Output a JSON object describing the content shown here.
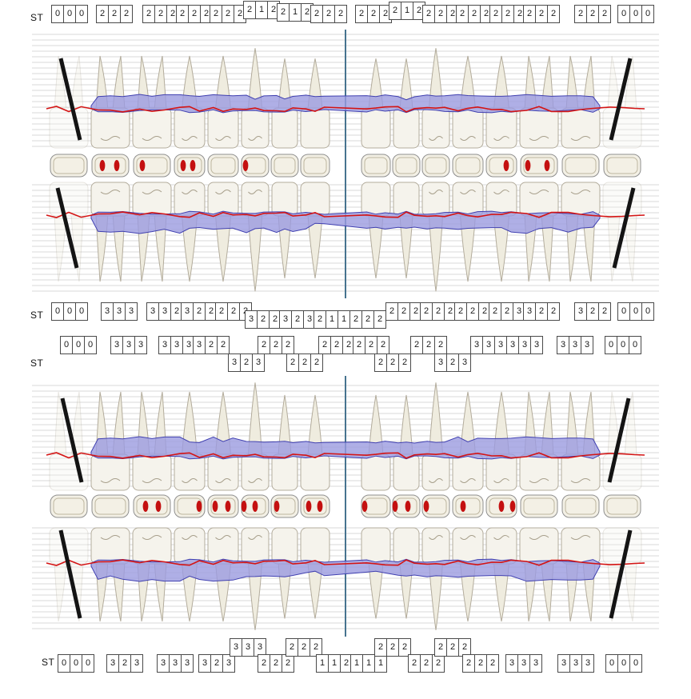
{
  "labels": {
    "st": "ST"
  },
  "colors": {
    "band_fill": "#9b9be0",
    "band_edge": "#4040b0",
    "gingiva_line": "#d41414",
    "center_line": "#47738f",
    "grid_line": "#d9d9d9",
    "tooth_fill": "#f5f3ec",
    "tooth_stroke": "#b3ac9c",
    "root_fill": "#efecdf",
    "box_border": "#4a4a4a",
    "occlusal_fill": "#f3f0e5",
    "occlusal_stroke": "#8f8f8f",
    "occlusal_inner": "#bdb69f",
    "dot": "#c41010",
    "missing_mark": "#141414"
  },
  "probing_rows": [
    {
      "label": "ST",
      "groups": [
        [
          "0",
          "0",
          "0"
        ],
        [
          "2",
          "2",
          "2"
        ],
        [
          "2",
          "2",
          "2"
        ],
        [
          "2",
          "2",
          "2"
        ],
        [
          "2",
          "2",
          "2"
        ],
        [
          "2",
          "1",
          "2"
        ],
        [
          "2",
          "1",
          "2"
        ],
        [
          "2",
          "2",
          "2"
        ],
        [
          "2",
          "2",
          "2"
        ],
        [
          "2",
          "1",
          "2"
        ],
        [
          "2",
          "2",
          "2"
        ],
        [
          "2",
          "2",
          "2"
        ],
        [
          "2",
          "2",
          "2"
        ],
        [
          "2",
          "2",
          "2"
        ],
        [
          "2",
          "2",
          "2"
        ],
        [
          "0",
          "0",
          "0"
        ]
      ]
    },
    {
      "label": "ST",
      "groups": [
        [
          "0",
          "0",
          "0"
        ],
        [
          "3",
          "3",
          "3"
        ],
        [
          "3",
          "3",
          "2"
        ],
        [
          "3",
          "2",
          "2"
        ],
        [
          "2",
          "2",
          "2"
        ],
        [
          "3",
          "2",
          "2"
        ],
        [
          "3",
          "2",
          "3"
        ],
        [
          "2",
          "1",
          "1"
        ],
        [
          "2",
          "2",
          "2"
        ],
        [
          "2",
          "2",
          "2"
        ],
        [
          "2",
          "2",
          "2"
        ],
        [
          "2",
          "2",
          "2"
        ],
        [
          "2",
          "2",
          "3"
        ],
        [
          "3",
          "2",
          "2"
        ],
        [
          "3",
          "2",
          "2"
        ],
        [
          "0",
          "0",
          "0"
        ]
      ]
    },
    {
      "label": "ST",
      "groups": [
        [
          "0",
          "0",
          "0"
        ],
        [
          "3",
          "3",
          "3"
        ],
        [
          "3",
          "3",
          "3"
        ],
        [
          "3",
          "2",
          "2"
        ],
        [
          "3",
          "2",
          "3"
        ],
        [
          "2",
          "2",
          "2"
        ],
        [
          "2",
          "2",
          "2"
        ],
        [
          "2",
          "2",
          "2"
        ],
        [
          "2",
          "2",
          "2"
        ],
        [
          "2",
          "2",
          "2"
        ],
        [
          "2",
          "2",
          "2"
        ],
        [
          "3",
          "2",
          "3"
        ],
        [
          "3",
          "3",
          "3"
        ],
        [
          "3",
          "3",
          "3"
        ],
        [
          "3",
          "3",
          "3"
        ],
        [
          "0",
          "0",
          "0"
        ]
      ]
    },
    {
      "label": "ST",
      "groups": [
        [
          "0",
          "0",
          "0"
        ],
        [
          "3",
          "2",
          "3"
        ],
        [
          "3",
          "3",
          "3"
        ],
        [
          "3",
          "2",
          "3"
        ],
        [
          "3",
          "3",
          "3"
        ],
        [
          "2",
          "2",
          "2"
        ],
        [
          "2",
          "2",
          "2"
        ],
        [
          "1",
          "1",
          "2"
        ],
        [
          "1",
          "1",
          "1"
        ],
        [
          "2",
          "2",
          "2"
        ],
        [
          "2",
          "2",
          "2"
        ],
        [
          "2",
          "2",
          "2"
        ],
        [
          "2",
          "2",
          "2"
        ],
        [
          "3",
          "3",
          "3"
        ],
        [
          "3",
          "3",
          "3"
        ],
        [
          "0",
          "0",
          "0"
        ]
      ]
    }
  ],
  "sections": [
    {
      "name": "upper-jaw",
      "occlusal_dots": [
        [],
        [
          -10,
          8
        ],
        [
          -12
        ],
        [
          -8,
          4
        ],
        [],
        [
          -12
        ],
        [],
        [],
        [],
        [],
        [],
        [],
        [
          6
        ],
        [
          -14,
          10
        ],
        [],
        []
      ]
    },
    {
      "name": "lower-jaw",
      "occlusal_dots": [
        [],
        [],
        [
          -8,
          8
        ],
        [
          12
        ],
        [
          -10,
          6
        ],
        [
          -14,
          0
        ],
        [
          -10
        ],
        [
          -8,
          6
        ],
        [
          -14
        ],
        [
          -14,
          2
        ],
        [
          -12
        ],
        [
          -6
        ],
        [
          0,
          14
        ],
        [],
        [],
        []
      ]
    }
  ]
}
